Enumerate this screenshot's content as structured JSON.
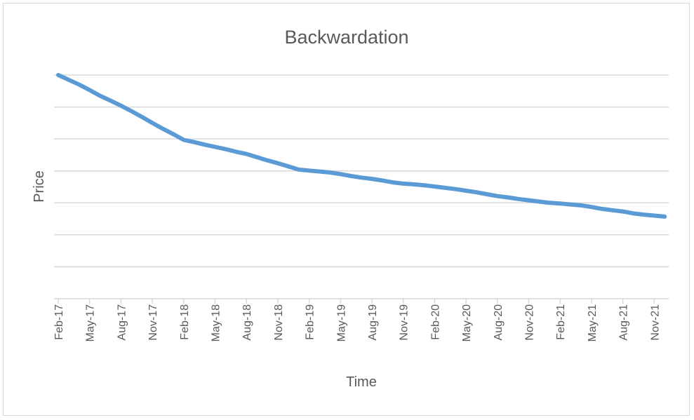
{
  "chart_data": {
    "type": "line",
    "title": "Backwardation",
    "xlabel": "Time",
    "ylabel": "Price",
    "categories": [
      "Feb-17",
      "May-17",
      "Aug-17",
      "Nov-17",
      "Feb-18",
      "May-18",
      "Aug-18",
      "Nov-18",
      "Feb-19",
      "May-19",
      "Aug-19",
      "Nov-19",
      "Feb-20",
      "May-20",
      "Aug-20",
      "Nov-20",
      "Feb-21",
      "May-21",
      "Aug-21",
      "Nov-21"
    ],
    "x": [
      "Feb-17",
      "Mar-17",
      "Apr-17",
      "May-17",
      "Jun-17",
      "Jul-17",
      "Aug-17",
      "Sep-17",
      "Oct-17",
      "Nov-17",
      "Dec-17",
      "Jan-18",
      "Feb-18",
      "Mar-18",
      "Apr-18",
      "May-18",
      "Jun-18",
      "Jul-18",
      "Aug-18",
      "Sep-18",
      "Oct-18",
      "Nov-18",
      "Dec-18",
      "Jan-19",
      "Feb-19",
      "Mar-19",
      "Apr-19",
      "May-19",
      "Jun-19",
      "Jul-19",
      "Aug-19",
      "Sep-19",
      "Oct-19",
      "Nov-19",
      "Dec-19",
      "Jan-20",
      "Feb-20",
      "Mar-20",
      "Apr-20",
      "May-20",
      "Jun-20",
      "Jul-20",
      "Aug-20",
      "Sep-20",
      "Oct-20",
      "Nov-20",
      "Dec-20",
      "Jan-21",
      "Feb-21",
      "Mar-21",
      "Apr-21",
      "May-21",
      "Jun-21",
      "Jul-21",
      "Aug-21",
      "Sep-21",
      "Oct-21",
      "Nov-21",
      "Dec-21"
    ],
    "series": [
      {
        "values": [
          7.0,
          6.85,
          6.7,
          6.53,
          6.35,
          6.2,
          6.04,
          5.87,
          5.69,
          5.5,
          5.32,
          5.15,
          4.97,
          4.9,
          4.82,
          4.75,
          4.68,
          4.6,
          4.53,
          4.43,
          4.33,
          4.24,
          4.14,
          4.04,
          4.01,
          3.98,
          3.95,
          3.9,
          3.84,
          3.79,
          3.75,
          3.7,
          3.64,
          3.6,
          3.58,
          3.55,
          3.51,
          3.47,
          3.43,
          3.38,
          3.33,
          3.27,
          3.21,
          3.17,
          3.12,
          3.08,
          3.04,
          3.0,
          2.98,
          2.95,
          2.92,
          2.87,
          2.81,
          2.77,
          2.73,
          2.67,
          2.63,
          2.6,
          2.57
        ],
        "color": "#5b9bd5"
      }
    ],
    "ylim": [
      0,
      7
    ],
    "grid": true,
    "y_tick_labels_shown": false,
    "legend": "none"
  }
}
